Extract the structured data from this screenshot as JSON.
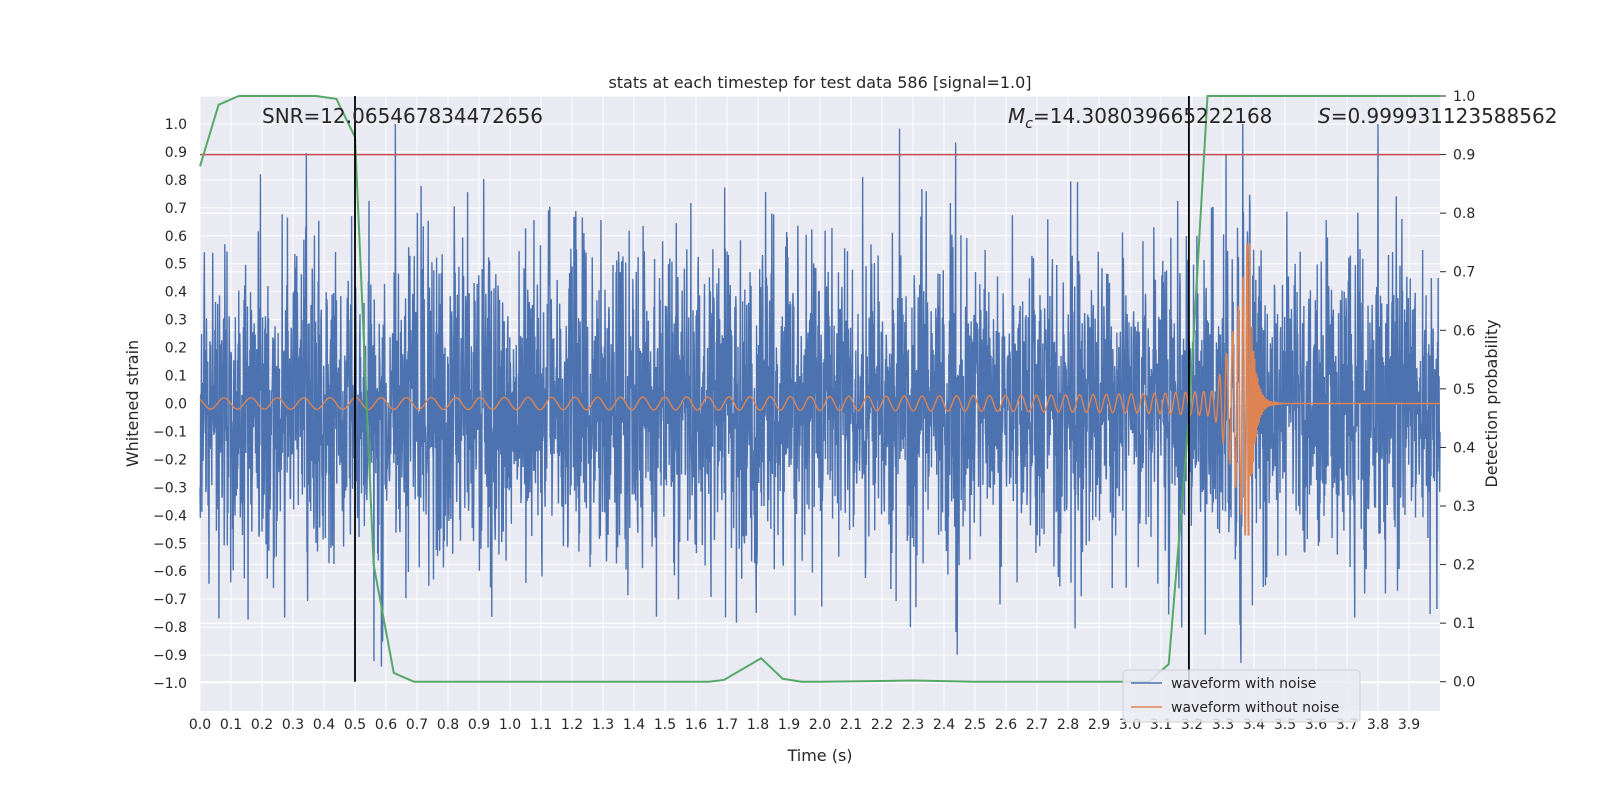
{
  "chart_data": {
    "type": "line",
    "title": "stats at each timestep for test data 586 [signal=1.0]",
    "xlabel": "Time (s)",
    "ylabel_left": "Whitened strain",
    "ylabel_right": "Detection probability",
    "xlim": [
      0.0,
      4.0
    ],
    "ylim_left": [
      -1.1,
      1.1
    ],
    "ylim_right": [
      -0.05,
      1.0
    ],
    "x_ticks": [
      "0.0",
      "0.1",
      "0.2",
      "0.3",
      "0.4",
      "0.5",
      "0.6",
      "0.7",
      "0.8",
      "0.9",
      "1.0",
      "1.1",
      "1.2",
      "1.3",
      "1.4",
      "1.5",
      "1.6",
      "1.7",
      "1.8",
      "1.9",
      "2.0",
      "2.1",
      "2.2",
      "2.3",
      "2.4",
      "2.5",
      "2.6",
      "2.7",
      "2.8",
      "2.9",
      "3.0",
      "3.1",
      "3.2",
      "3.3",
      "3.4",
      "3.5",
      "3.6",
      "3.7",
      "3.8",
      "3.9"
    ],
    "y_ticks_left": [
      "1.0",
      "0.9",
      "0.8",
      "0.7",
      "0.6",
      "0.5",
      "0.4",
      "0.3",
      "0.2",
      "0.1",
      "0.0",
      "−0.1",
      "−0.2",
      "−0.3",
      "−0.4",
      "−0.5",
      "−0.6",
      "−0.7",
      "−0.8",
      "−0.9",
      "−1.0"
    ],
    "y_ticks_right": [
      "1.0",
      "0.9",
      "0.8",
      "0.7",
      "0.6",
      "0.5",
      "0.4",
      "0.3",
      "0.2",
      "0.1",
      "0.0"
    ],
    "annotations": {
      "snr": "SNR=12.065467834472656",
      "mc_symbol": "M",
      "mc_sub": "c",
      "mc_value": "=14.308039665222168",
      "s_symbol": "S",
      "s_value": "=0.999931123588562"
    },
    "vlines": [
      0.5,
      3.19
    ],
    "threshold": {
      "axis": "right",
      "value": 0.9,
      "color": "#c44e52"
    },
    "series": [
      {
        "name": "waveform with noise",
        "color": "#4c72b0",
        "axis": "left",
        "kind": "noise",
        "amplitude": 0.28,
        "peak_range": [
          -0.95,
          1.0
        ]
      },
      {
        "name": "waveform without noise",
        "color": "#dd8452",
        "axis": "left",
        "kind": "chirp",
        "t_merger": 3.39,
        "amp_start": 0.02,
        "amp_peak_pos": 0.57,
        "amp_peak_neg": -0.47
      },
      {
        "name": "detection probability",
        "color": "#55a868",
        "axis": "right",
        "x": [
          0.0,
          0.06,
          0.125,
          0.19,
          0.25,
          0.31,
          0.375,
          0.44,
          0.5,
          0.56,
          0.625,
          0.69,
          0.75,
          0.81,
          0.875,
          0.94,
          1.0,
          1.5,
          1.64,
          1.69,
          1.81,
          1.88,
          1.94,
          2.0,
          2.3,
          2.5,
          3.0,
          3.06,
          3.125,
          3.19,
          3.25,
          3.31,
          3.5,
          4.0
        ],
        "y": [
          0.88,
          0.985,
          1.0,
          1.0,
          1.0,
          1.0,
          1.0,
          0.995,
          0.93,
          0.2,
          0.015,
          0.0,
          0.0,
          0.0,
          0.0,
          0.0,
          0.0,
          0.0,
          0.0,
          0.003,
          0.04,
          0.005,
          0.0,
          0.0,
          0.002,
          0.0,
          0.0,
          0.0,
          0.03,
          0.45,
          1.0,
          1.0,
          1.0,
          1.0
        ]
      }
    ],
    "legend": {
      "position": "lower-right",
      "entries": [
        "waveform with noise",
        "waveform without noise"
      ]
    }
  }
}
